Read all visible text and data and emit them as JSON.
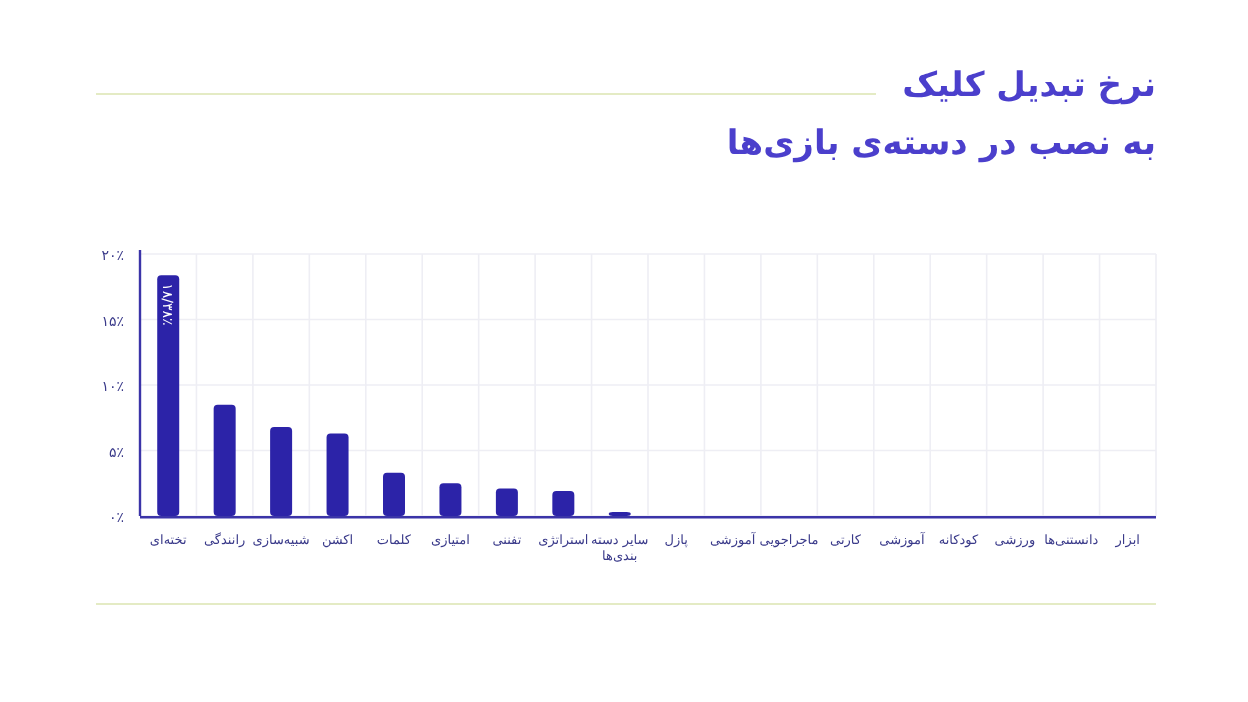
{
  "chart_data": {
    "type": "bar",
    "title": "نرخ تبدیل کلیک",
    "subtitle": "به نصب در دسته‌ی بازی‌ها",
    "categories": [
      "تخته‌ای",
      "رانندگی",
      "شبیه‌سازی",
      "اکشن",
      "کلمات",
      "امتیازی",
      "تفننی",
      "استراتژی",
      "سایر دسته بندی‌ها",
      "پازل",
      "آموزشی",
      "ماجراجویی",
      "کارتی",
      "آموزشی",
      "کودکانه",
      "ورزشی",
      "دانستنی‌ها",
      "ابزار"
    ],
    "values": [
      18.38,
      8.5,
      6.8,
      6.3,
      3.3,
      2.5,
      2.1,
      1.9,
      0.3,
      0,
      0,
      0,
      0,
      0,
      0,
      0,
      0,
      0
    ],
    "value_labels": [
      "۱۸/۳۸٪",
      null,
      null,
      null,
      null,
      null,
      null,
      null,
      null,
      null,
      null,
      null,
      null,
      null,
      null,
      null,
      null,
      null
    ],
    "color": "#2c23a8",
    "ylim": [
      0,
      20
    ],
    "yticks": [
      {
        "value": 0,
        "label": "۰٪"
      },
      {
        "value": 5,
        "label": "۵٪"
      },
      {
        "value": 10,
        "label": "۱۰٪"
      },
      {
        "value": 15,
        "label": "۱۵٪"
      },
      {
        "value": 20,
        "label": "۲۰٪"
      }
    ],
    "grid": true
  }
}
